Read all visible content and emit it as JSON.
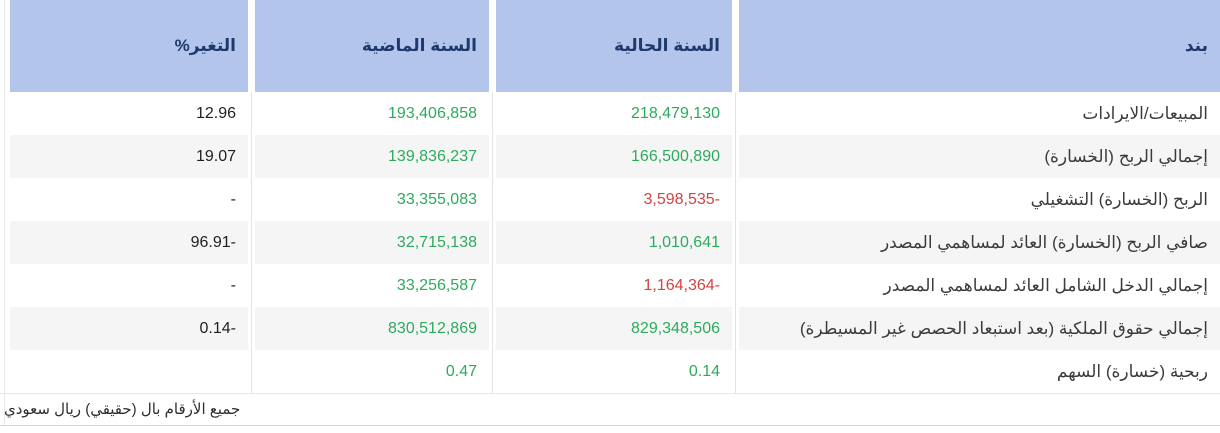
{
  "header": {
    "item": "بند",
    "current_year": "السنة الحالية",
    "previous_year": "السنة الماضية",
    "change_pct": "التغير%"
  },
  "rows": [
    {
      "item": "المبيعات/الايرادات",
      "current": {
        "text": "218,479,130",
        "state": "up"
      },
      "previous": {
        "text": "193,406,858",
        "state": "up"
      },
      "change": {
        "text": "12.96",
        "state": "neutral"
      }
    },
    {
      "item": "إجمالي الربح (الخسارة)",
      "current": {
        "text": "166,500,890",
        "state": "up"
      },
      "previous": {
        "text": "139,836,237",
        "state": "up"
      },
      "change": {
        "text": "19.07",
        "state": "neutral"
      }
    },
    {
      "item": "الربح (الخسارة) التشغيلي",
      "current": {
        "text": "3,598,535-",
        "state": "down"
      },
      "previous": {
        "text": "33,355,083",
        "state": "up"
      },
      "change": {
        "text": "-",
        "state": "neutral"
      }
    },
    {
      "item": "صافي الربح (الخسارة) العائد لمساهمي المصدر",
      "current": {
        "text": "1,010,641",
        "state": "up"
      },
      "previous": {
        "text": "32,715,138",
        "state": "up"
      },
      "change": {
        "text": "96.91-",
        "state": "neutral"
      }
    },
    {
      "item": "إجمالي الدخل الشامل العائد لمساهمي المصدر",
      "current": {
        "text": "1,164,364-",
        "state": "down"
      },
      "previous": {
        "text": "33,256,587",
        "state": "up"
      },
      "change": {
        "text": "-",
        "state": "neutral"
      }
    },
    {
      "item": "إجمالي حقوق الملكية (بعد استبعاد الحصص غير المسيطرة)",
      "current": {
        "text": "829,348,506",
        "state": "up"
      },
      "previous": {
        "text": "830,512,869",
        "state": "up"
      },
      "change": {
        "text": "0.14-",
        "state": "neutral"
      }
    },
    {
      "item": "ربحية (خسارة) السهم",
      "current": {
        "text": "0.14",
        "state": "up"
      },
      "previous": {
        "text": "0.47",
        "state": "up"
      },
      "change": {
        "text": "",
        "state": "neutral"
      }
    }
  ],
  "footnote": "جميع الأرقام بال (حقيقي) ريال سعودي",
  "colors": {
    "up": "#2eaa5e",
    "down": "#d14440",
    "neutral": "#1f1f1f",
    "header_bg": "#b3c5ea",
    "header_text": "#1e3a6d"
  }
}
